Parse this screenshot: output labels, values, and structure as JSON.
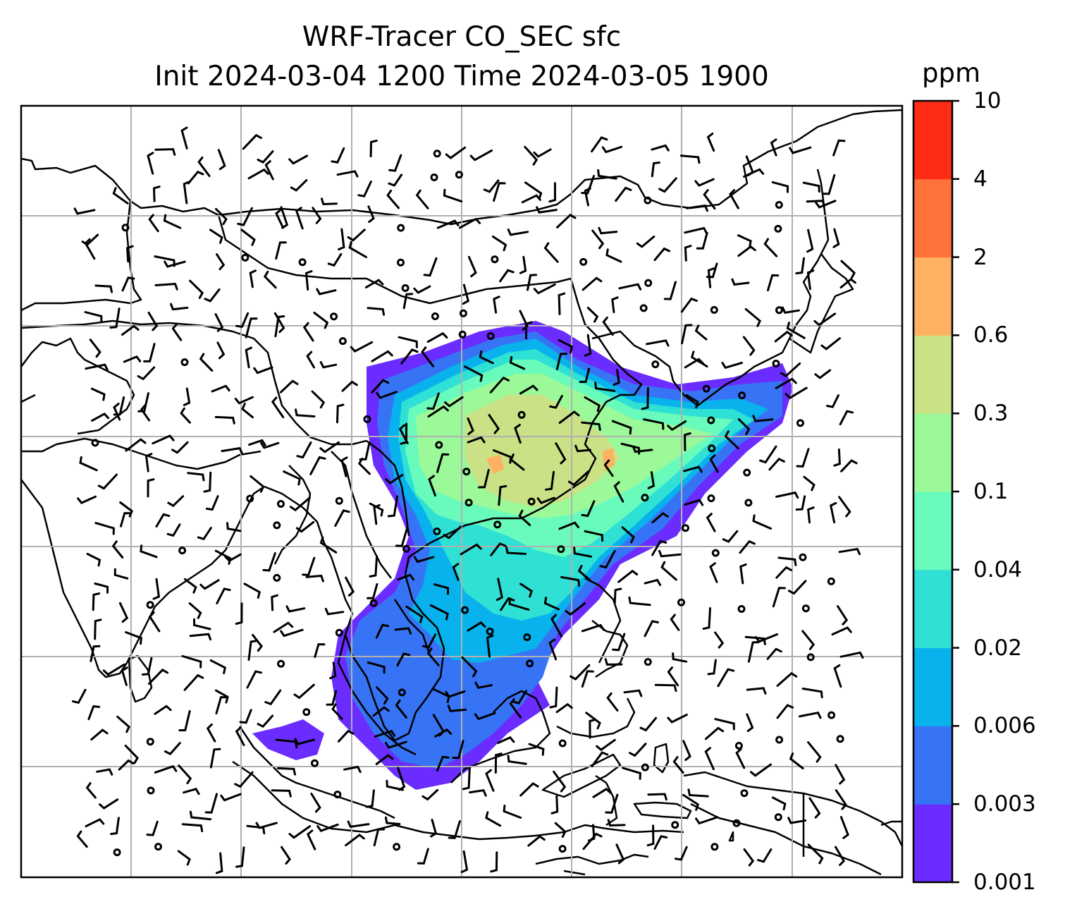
{
  "title": {
    "line1": "WRF-Tracer CO_SEC sfc",
    "line2": "Init 2024-03-04 1200 Time 2024-03-05 1900"
  },
  "colorbar": {
    "units": "ppm",
    "ticks": [
      "0.001",
      "0.003",
      "0.006",
      "0.02",
      "0.04",
      "0.1",
      "0.3",
      "0.6",
      "2",
      "4",
      "10"
    ],
    "colors": [
      "#6a2cff",
      "#3774f5",
      "#08b2ec",
      "#2fe0d4",
      "#68fbbc",
      "#9bf99a",
      "#cbe186",
      "#fdb161",
      "#ff723a",
      "#ff2c15"
    ]
  },
  "colors": {
    "coastline": "#000000",
    "gridlines": "#b0b0b0",
    "wind_barbs": "#000000"
  }
}
